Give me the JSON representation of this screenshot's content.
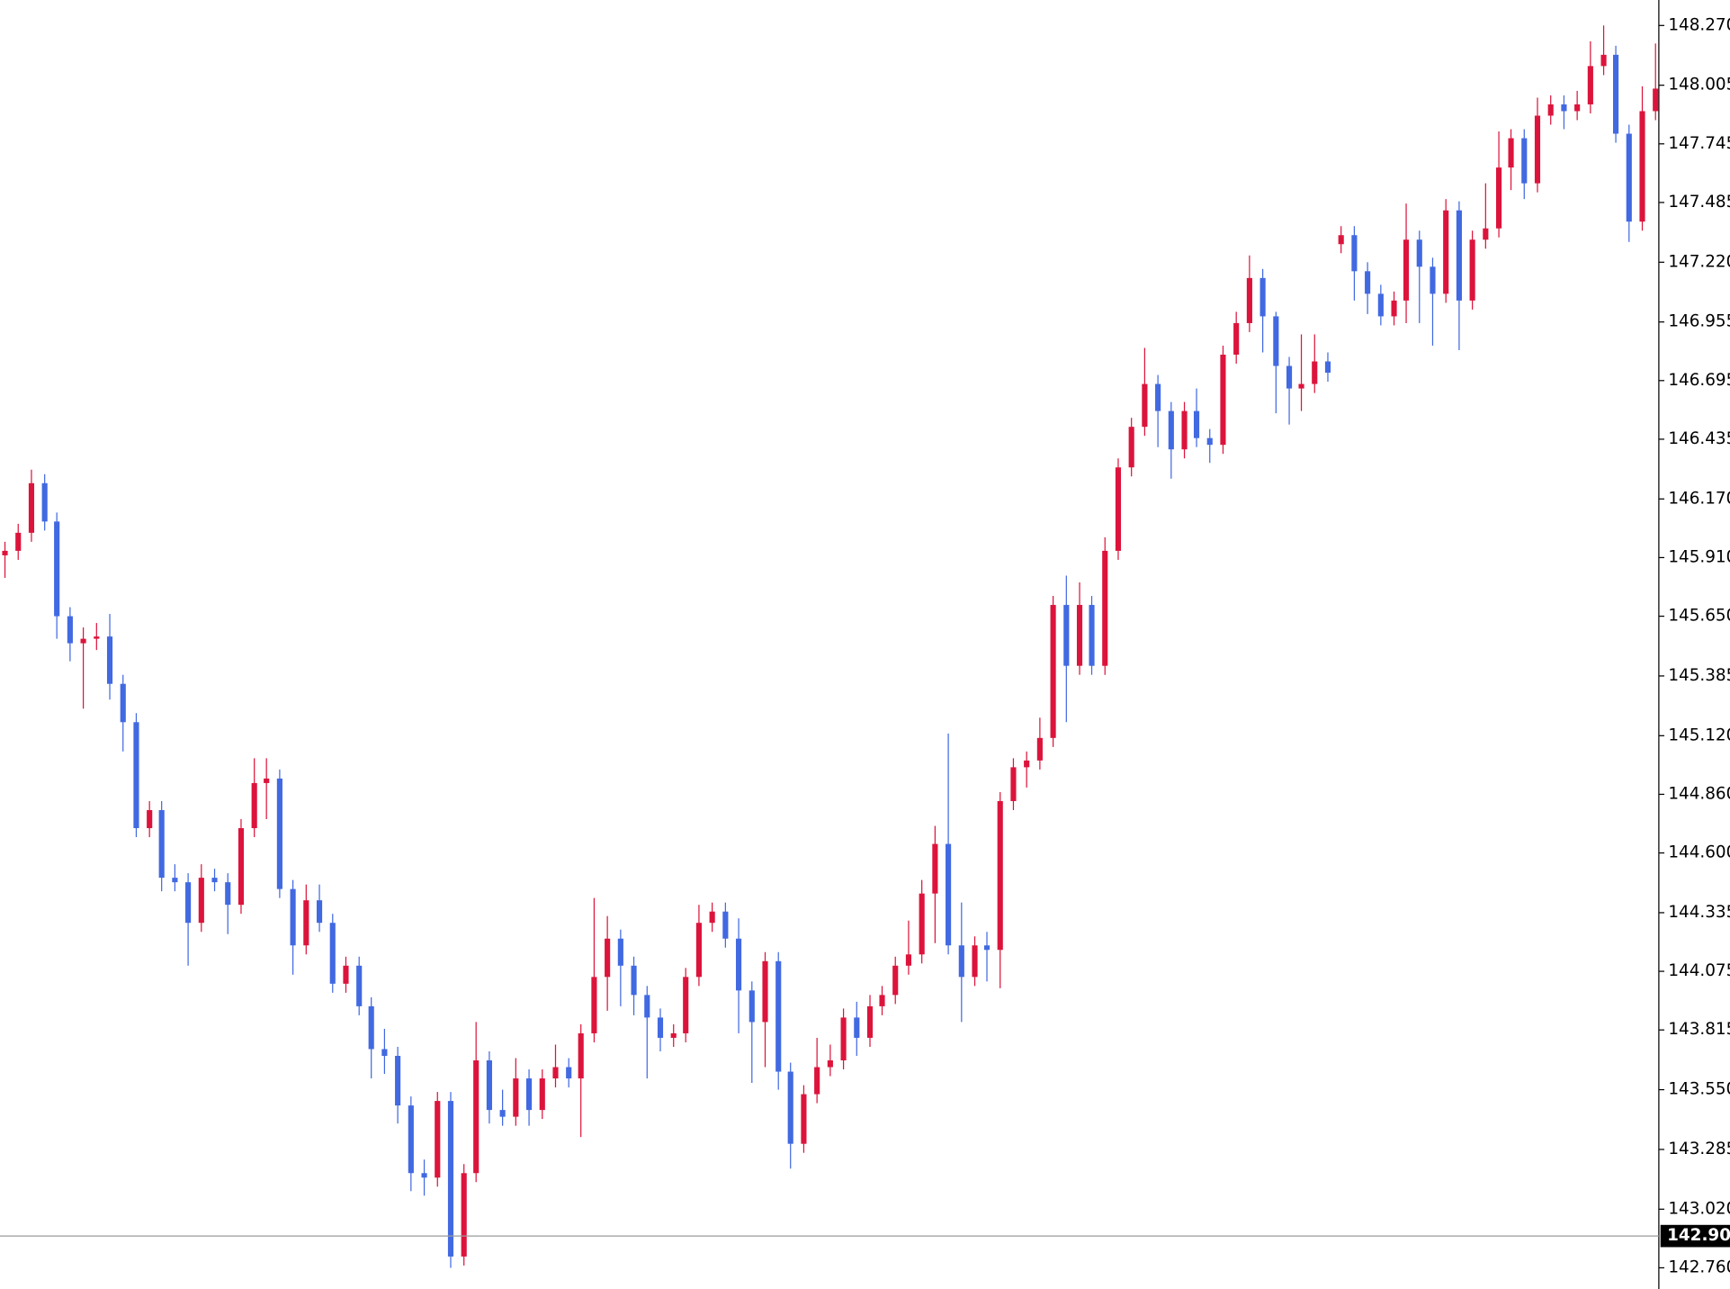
{
  "chart_data": {
    "type": "candlestick",
    "up_color": "#dc143c",
    "down_color": "#4169e1",
    "ylim": [
      142.666,
      148.383
    ],
    "yticks": [
      {
        "value": 148.27,
        "label": "148.270"
      },
      148.005,
      147.745,
      147.485,
      {
        "value": 147.22,
        "label": "147.220"
      },
      146.955,
      146.695,
      146.435,
      {
        "value": 146.17,
        "label": "146.170"
      },
      {
        "value": 145.91,
        "label": "145.910"
      },
      {
        "value": 145.65,
        "label": "145.650"
      },
      145.385,
      {
        "value": 145.12,
        "label": "145.120"
      },
      {
        "value": 144.86,
        "label": "144.860"
      },
      {
        "value": 144.6,
        "label": "144.600"
      },
      144.335,
      144.075,
      143.815,
      {
        "value": 143.55,
        "label": "143.550"
      },
      143.285,
      {
        "value": 143.02,
        "label": "143.020"
      },
      {
        "value": 142.76,
        "label": "142.760"
      }
    ],
    "current_price": 142.901,
    "open": [
      145.92,
      145.94,
      146.02,
      146.24,
      146.07,
      145.65,
      145.53,
      145.55,
      145.56,
      145.35,
      145.18,
      144.71,
      144.79,
      144.49,
      144.47,
      144.29,
      144.49,
      144.47,
      144.37,
      144.71,
      144.91,
      144.93,
      144.44,
      144.19,
      144.39,
      144.29,
      144.02,
      144.1,
      143.92,
      143.73,
      143.7,
      143.48,
      143.18,
      143.16,
      143.5,
      142.81,
      143.18,
      143.68,
      143.46,
      143.43,
      143.6,
      143.46,
      143.6,
      143.65,
      143.6,
      143.8,
      144.05,
      144.22,
      144.1,
      143.97,
      143.87,
      143.78,
      143.8,
      144.05,
      144.29,
      144.34,
      144.22,
      143.99,
      143.85,
      144.12,
      143.63,
      143.31,
      143.53,
      143.65,
      143.68,
      143.87,
      143.78,
      143.92,
      143.97,
      144.1,
      144.15,
      144.42,
      144.64,
      144.19,
      144.05,
      144.19,
      144.17,
      144.83,
      144.98,
      145.01,
      145.11,
      145.7,
      145.43,
      145.7,
      145.43,
      145.94,
      146.31,
      146.49,
      146.68,
      146.56,
      146.39,
      146.56,
      146.44,
      146.41,
      146.81,
      146.95,
      147.15,
      146.98,
      146.76,
      146.66,
      146.68,
      146.78,
      147.3,
      147.34,
      147.18,
      147.08,
      146.98,
      147.05,
      147.32,
      147.2,
      147.08,
      147.45,
      147.05,
      147.32,
      147.37,
      147.64,
      147.77,
      147.57,
      147.87,
      147.92,
      147.89,
      147.92,
      148.09,
      148.14,
      147.79,
      147.4,
      147.89
    ],
    "high": [
      145.98,
      146.06,
      146.3,
      146.28,
      146.11,
      145.69,
      145.6,
      145.62,
      145.66,
      145.39,
      145.22,
      144.83,
      144.83,
      144.55,
      144.51,
      144.55,
      144.53,
      144.51,
      144.75,
      145.02,
      145.02,
      144.97,
      144.48,
      144.46,
      144.46,
      144.33,
      144.14,
      144.14,
      143.96,
      143.82,
      143.74,
      143.52,
      143.24,
      143.54,
      143.54,
      143.22,
      143.85,
      143.72,
      143.55,
      143.69,
      143.64,
      143.64,
      143.75,
      143.69,
      143.84,
      144.4,
      144.32,
      144.26,
      144.14,
      144.01,
      143.91,
      143.84,
      144.09,
      144.37,
      144.38,
      144.38,
      144.31,
      144.03,
      144.16,
      144.16,
      143.67,
      143.57,
      143.78,
      143.75,
      143.91,
      143.94,
      143.97,
      144.01,
      144.14,
      144.3,
      144.48,
      144.72,
      145.13,
      144.38,
      144.23,
      144.25,
      144.87,
      145.02,
      145.05,
      145.2,
      145.74,
      145.83,
      145.8,
      145.74,
      146.0,
      146.35,
      146.53,
      146.84,
      146.72,
      146.6,
      146.6,
      146.66,
      146.48,
      146.85,
      147.0,
      147.25,
      147.19,
      147.0,
      146.8,
      146.9,
      146.9,
      146.82,
      147.38,
      147.38,
      147.22,
      147.12,
      147.09,
      147.48,
      147.36,
      147.24,
      147.5,
      147.49,
      147.36,
      147.57,
      147.8,
      147.81,
      147.81,
      147.95,
      147.96,
      147.96,
      147.98,
      148.2,
      148.27,
      148.18,
      147.83,
      148.0,
      148.19
    ],
    "low": [
      145.82,
      145.9,
      145.98,
      146.03,
      145.55,
      145.45,
      145.24,
      145.5,
      145.28,
      145.05,
      144.67,
      144.67,
      144.43,
      144.43,
      144.1,
      144.25,
      144.43,
      144.24,
      144.33,
      144.67,
      144.75,
      144.4,
      144.06,
      144.15,
      144.25,
      143.98,
      143.98,
      143.88,
      143.6,
      143.62,
      143.4,
      143.1,
      143.08,
      143.12,
      142.76,
      142.77,
      143.14,
      143.4,
      143.39,
      143.39,
      143.39,
      143.42,
      143.56,
      143.56,
      143.34,
      143.76,
      143.9,
      143.92,
      143.88,
      143.6,
      143.72,
      143.74,
      143.76,
      144.01,
      144.25,
      144.18,
      143.8,
      143.58,
      143.65,
      143.55,
      143.2,
      143.27,
      143.49,
      143.61,
      143.64,
      143.7,
      143.74,
      143.88,
      143.93,
      144.06,
      144.11,
      144.2,
      144.15,
      143.85,
      144.01,
      144.03,
      144.0,
      144.79,
      144.89,
      144.97,
      145.07,
      145.18,
      145.39,
      145.39,
      145.39,
      145.9,
      146.27,
      146.45,
      146.4,
      146.26,
      146.35,
      146.4,
      146.33,
      146.37,
      146.77,
      146.91,
      146.82,
      146.55,
      146.5,
      146.56,
      146.64,
      146.69,
      147.26,
      147.05,
      146.99,
      146.94,
      146.94,
      146.95,
      146.95,
      146.85,
      147.04,
      146.83,
      147.01,
      147.28,
      147.33,
      147.54,
      147.5,
      147.53,
      147.83,
      147.81,
      147.85,
      147.88,
      148.05,
      147.75,
      147.31,
      147.36,
      147.85
    ],
    "close": [
      145.94,
      146.02,
      146.24,
      146.07,
      145.65,
      145.53,
      145.55,
      145.56,
      145.35,
      145.18,
      144.71,
      144.79,
      144.49,
      144.47,
      144.29,
      144.49,
      144.47,
      144.37,
      144.71,
      144.91,
      144.93,
      144.44,
      144.19,
      144.39,
      144.29,
      144.02,
      144.1,
      143.92,
      143.73,
      143.7,
      143.48,
      143.18,
      143.16,
      143.5,
      142.81,
      143.18,
      143.68,
      143.46,
      143.43,
      143.6,
      143.46,
      143.6,
      143.65,
      143.6,
      143.8,
      144.05,
      144.22,
      144.1,
      143.97,
      143.87,
      143.78,
      143.8,
      144.05,
      144.29,
      144.34,
      144.22,
      143.99,
      143.85,
      144.12,
      143.63,
      143.31,
      143.53,
      143.65,
      143.68,
      143.87,
      143.78,
      143.92,
      143.97,
      144.1,
      144.15,
      144.42,
      144.64,
      144.19,
      144.05,
      144.19,
      144.17,
      144.83,
      144.98,
      145.01,
      145.11,
      145.7,
      145.43,
      145.7,
      145.43,
      145.94,
      146.31,
      146.49,
      146.68,
      146.56,
      146.39,
      146.56,
      146.44,
      146.41,
      146.81,
      146.95,
      147.15,
      146.98,
      146.76,
      146.66,
      146.68,
      146.78,
      146.73,
      147.34,
      147.18,
      147.08,
      146.98,
      147.05,
      147.32,
      147.2,
      147.08,
      147.45,
      147.05,
      147.32,
      147.37,
      147.64,
      147.77,
      147.57,
      147.87,
      147.92,
      147.89,
      147.92,
      148.09,
      148.14,
      147.79,
      147.4,
      147.89,
      147.99
    ]
  }
}
